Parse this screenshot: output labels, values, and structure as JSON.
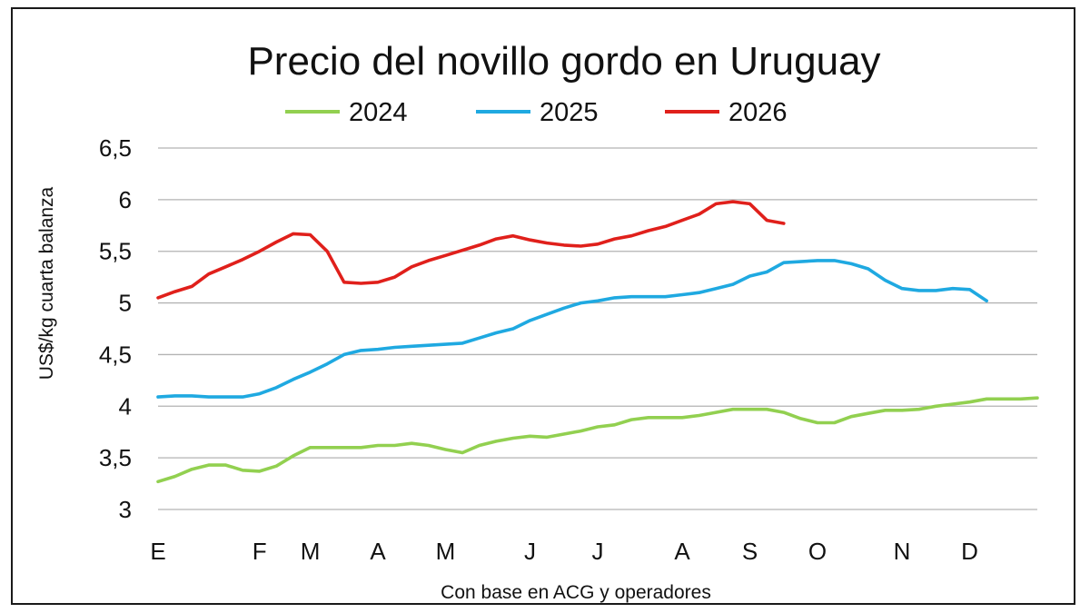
{
  "chart_data": {
    "type": "line",
    "title": "Precio del novillo gordo en Uruguay",
    "ylabel": "US$/kg cuarta balanza",
    "xlabel": "Con base en ACG y operadores",
    "ylim": [
      3,
      6.5
    ],
    "y_ticks": [
      "6,5",
      "6",
      "5,5",
      "5",
      "4,5",
      "4",
      "3,5",
      "3"
    ],
    "y_tick_values": [
      6.5,
      6,
      5.5,
      5,
      4.5,
      4,
      3.5,
      3
    ],
    "x_ticks": [
      "E",
      "F",
      "M",
      "A",
      "M",
      "J",
      "J",
      "A",
      "S",
      "O",
      "N",
      "D"
    ],
    "x_tick_weeks": [
      1,
      7,
      10,
      14,
      18,
      23,
      27,
      32,
      36,
      40,
      45,
      49
    ],
    "xlim": [
      1,
      53
    ],
    "grid": true,
    "legend_position": "top",
    "series": [
      {
        "name": "2024",
        "color": "#92d050",
        "x": [
          1,
          2,
          3,
          4,
          5,
          6,
          7,
          8,
          9,
          10,
          11,
          12,
          13,
          14,
          15,
          16,
          17,
          18,
          19,
          20,
          21,
          22,
          23,
          24,
          25,
          26,
          27,
          28,
          29,
          30,
          31,
          32,
          33,
          34,
          35,
          36,
          37,
          38,
          39,
          40,
          41,
          42,
          43,
          44,
          45,
          46,
          47,
          48,
          49,
          50,
          51,
          52,
          53
        ],
        "values": [
          3.27,
          3.32,
          3.39,
          3.43,
          3.43,
          3.38,
          3.37,
          3.42,
          3.52,
          3.6,
          3.6,
          3.6,
          3.6,
          3.62,
          3.62,
          3.64,
          3.62,
          3.58,
          3.55,
          3.62,
          3.66,
          3.69,
          3.71,
          3.7,
          3.73,
          3.76,
          3.8,
          3.82,
          3.87,
          3.89,
          3.89,
          3.89,
          3.91,
          3.94,
          3.97,
          3.97,
          3.97,
          3.94,
          3.88,
          3.84,
          3.84,
          3.9,
          3.93,
          3.96,
          3.96,
          3.97,
          4.0,
          4.02,
          4.04,
          4.07,
          4.07,
          4.07,
          4.08
        ]
      },
      {
        "name": "2025",
        "color": "#1fa9e1",
        "x": [
          1,
          2,
          3,
          4,
          5,
          6,
          7,
          8,
          9,
          10,
          11,
          12,
          13,
          14,
          15,
          16,
          17,
          18,
          19,
          20,
          21,
          22,
          23,
          24,
          25,
          26,
          27,
          28,
          29,
          30,
          31,
          32,
          33,
          34,
          35,
          36,
          37,
          38,
          39,
          40,
          41,
          42,
          43,
          44,
          45,
          46,
          47,
          48,
          49,
          50
        ],
        "values": [
          4.09,
          4.1,
          4.1,
          4.09,
          4.09,
          4.09,
          4.12,
          4.18,
          4.26,
          4.33,
          4.41,
          4.5,
          4.54,
          4.55,
          4.57,
          4.58,
          4.59,
          4.6,
          4.61,
          4.66,
          4.71,
          4.75,
          4.83,
          4.89,
          4.95,
          5.0,
          5.02,
          5.05,
          5.06,
          5.06,
          5.06,
          5.08,
          5.1,
          5.14,
          5.18,
          5.26,
          5.3,
          5.39,
          5.4,
          5.41,
          5.41,
          5.38,
          5.33,
          5.22,
          5.14,
          5.12,
          5.12,
          5.14,
          5.13,
          5.02
        ]
      },
      {
        "name": "2026",
        "color": "#e0201b",
        "x": [
          1,
          2,
          3,
          4,
          5,
          6,
          7,
          8,
          9,
          10,
          11,
          12,
          13,
          14,
          15,
          16,
          17,
          18,
          19,
          20,
          21,
          22,
          23,
          24,
          25,
          26,
          27,
          28,
          29,
          30,
          31,
          32,
          33,
          34,
          35,
          36,
          37,
          38
        ],
        "values": [
          5.05,
          5.11,
          5.16,
          5.28,
          5.35,
          5.42,
          5.5,
          5.59,
          5.67,
          5.66,
          5.5,
          5.2,
          5.19,
          5.2,
          5.25,
          5.35,
          5.41,
          5.46,
          5.51,
          5.56,
          5.62,
          5.65,
          5.61,
          5.58,
          5.56,
          5.55,
          5.57,
          5.62,
          5.65,
          5.7,
          5.74,
          5.8,
          5.86,
          5.96,
          5.98,
          5.96,
          5.8,
          5.77
        ]
      }
    ]
  }
}
